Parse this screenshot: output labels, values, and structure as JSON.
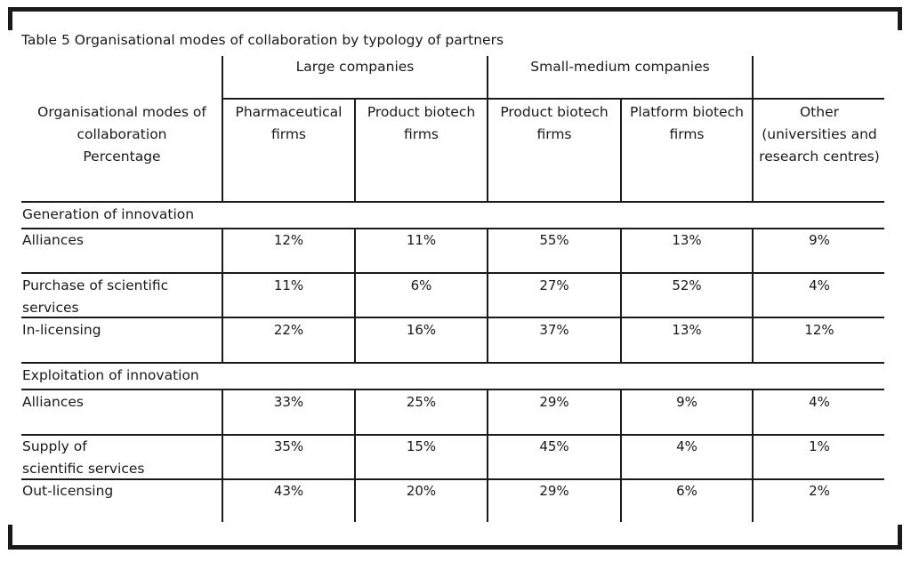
{
  "caption": "Table  5  Organisational modes of collaboration by typology of partners",
  "group_headers": {
    "large": "Large companies",
    "small_medium": "Small-medium companies"
  },
  "column_headers": {
    "row_label": [
      "Organisational modes of",
      "collaboration",
      "Percentage"
    ],
    "pharma": [
      "Pharmaceutical",
      "firms"
    ],
    "large_product": [
      "Product biotech",
      "firms"
    ],
    "sm_product": [
      "Product biotech",
      "firms"
    ],
    "sm_platform": [
      "Platform biotech",
      "firms"
    ],
    "other": [
      "Other",
      "(universities and",
      "research centres)"
    ]
  },
  "sections": [
    {
      "title": "Generation of innovation",
      "rows": [
        {
          "label": [
            "Alliances"
          ],
          "values": [
            "12%",
            "11%",
            "55%",
            "13%",
            "9%"
          ]
        },
        {
          "label": [
            "Purchase of scientific",
            "services"
          ],
          "values": [
            "11%",
            "6%",
            "27%",
            "52%",
            "4%"
          ]
        },
        {
          "label": [
            "In-licensing"
          ],
          "values": [
            "22%",
            "16%",
            "37%",
            "13%",
            "12%"
          ]
        }
      ]
    },
    {
      "title": "Exploitation of innovation",
      "rows": [
        {
          "label": [
            "Alliances"
          ],
          "values": [
            "33%",
            "25%",
            "29%",
            "9%",
            "4%"
          ]
        },
        {
          "label": [
            "Supply of",
            "scientific services"
          ],
          "values": [
            "35%",
            "15%",
            "45%",
            "4%",
            "1%"
          ]
        },
        {
          "label": [
            "Out-licensing"
          ],
          "values": [
            "43%",
            "20%",
            "29%",
            "6%",
            "2%"
          ]
        }
      ]
    }
  ]
}
